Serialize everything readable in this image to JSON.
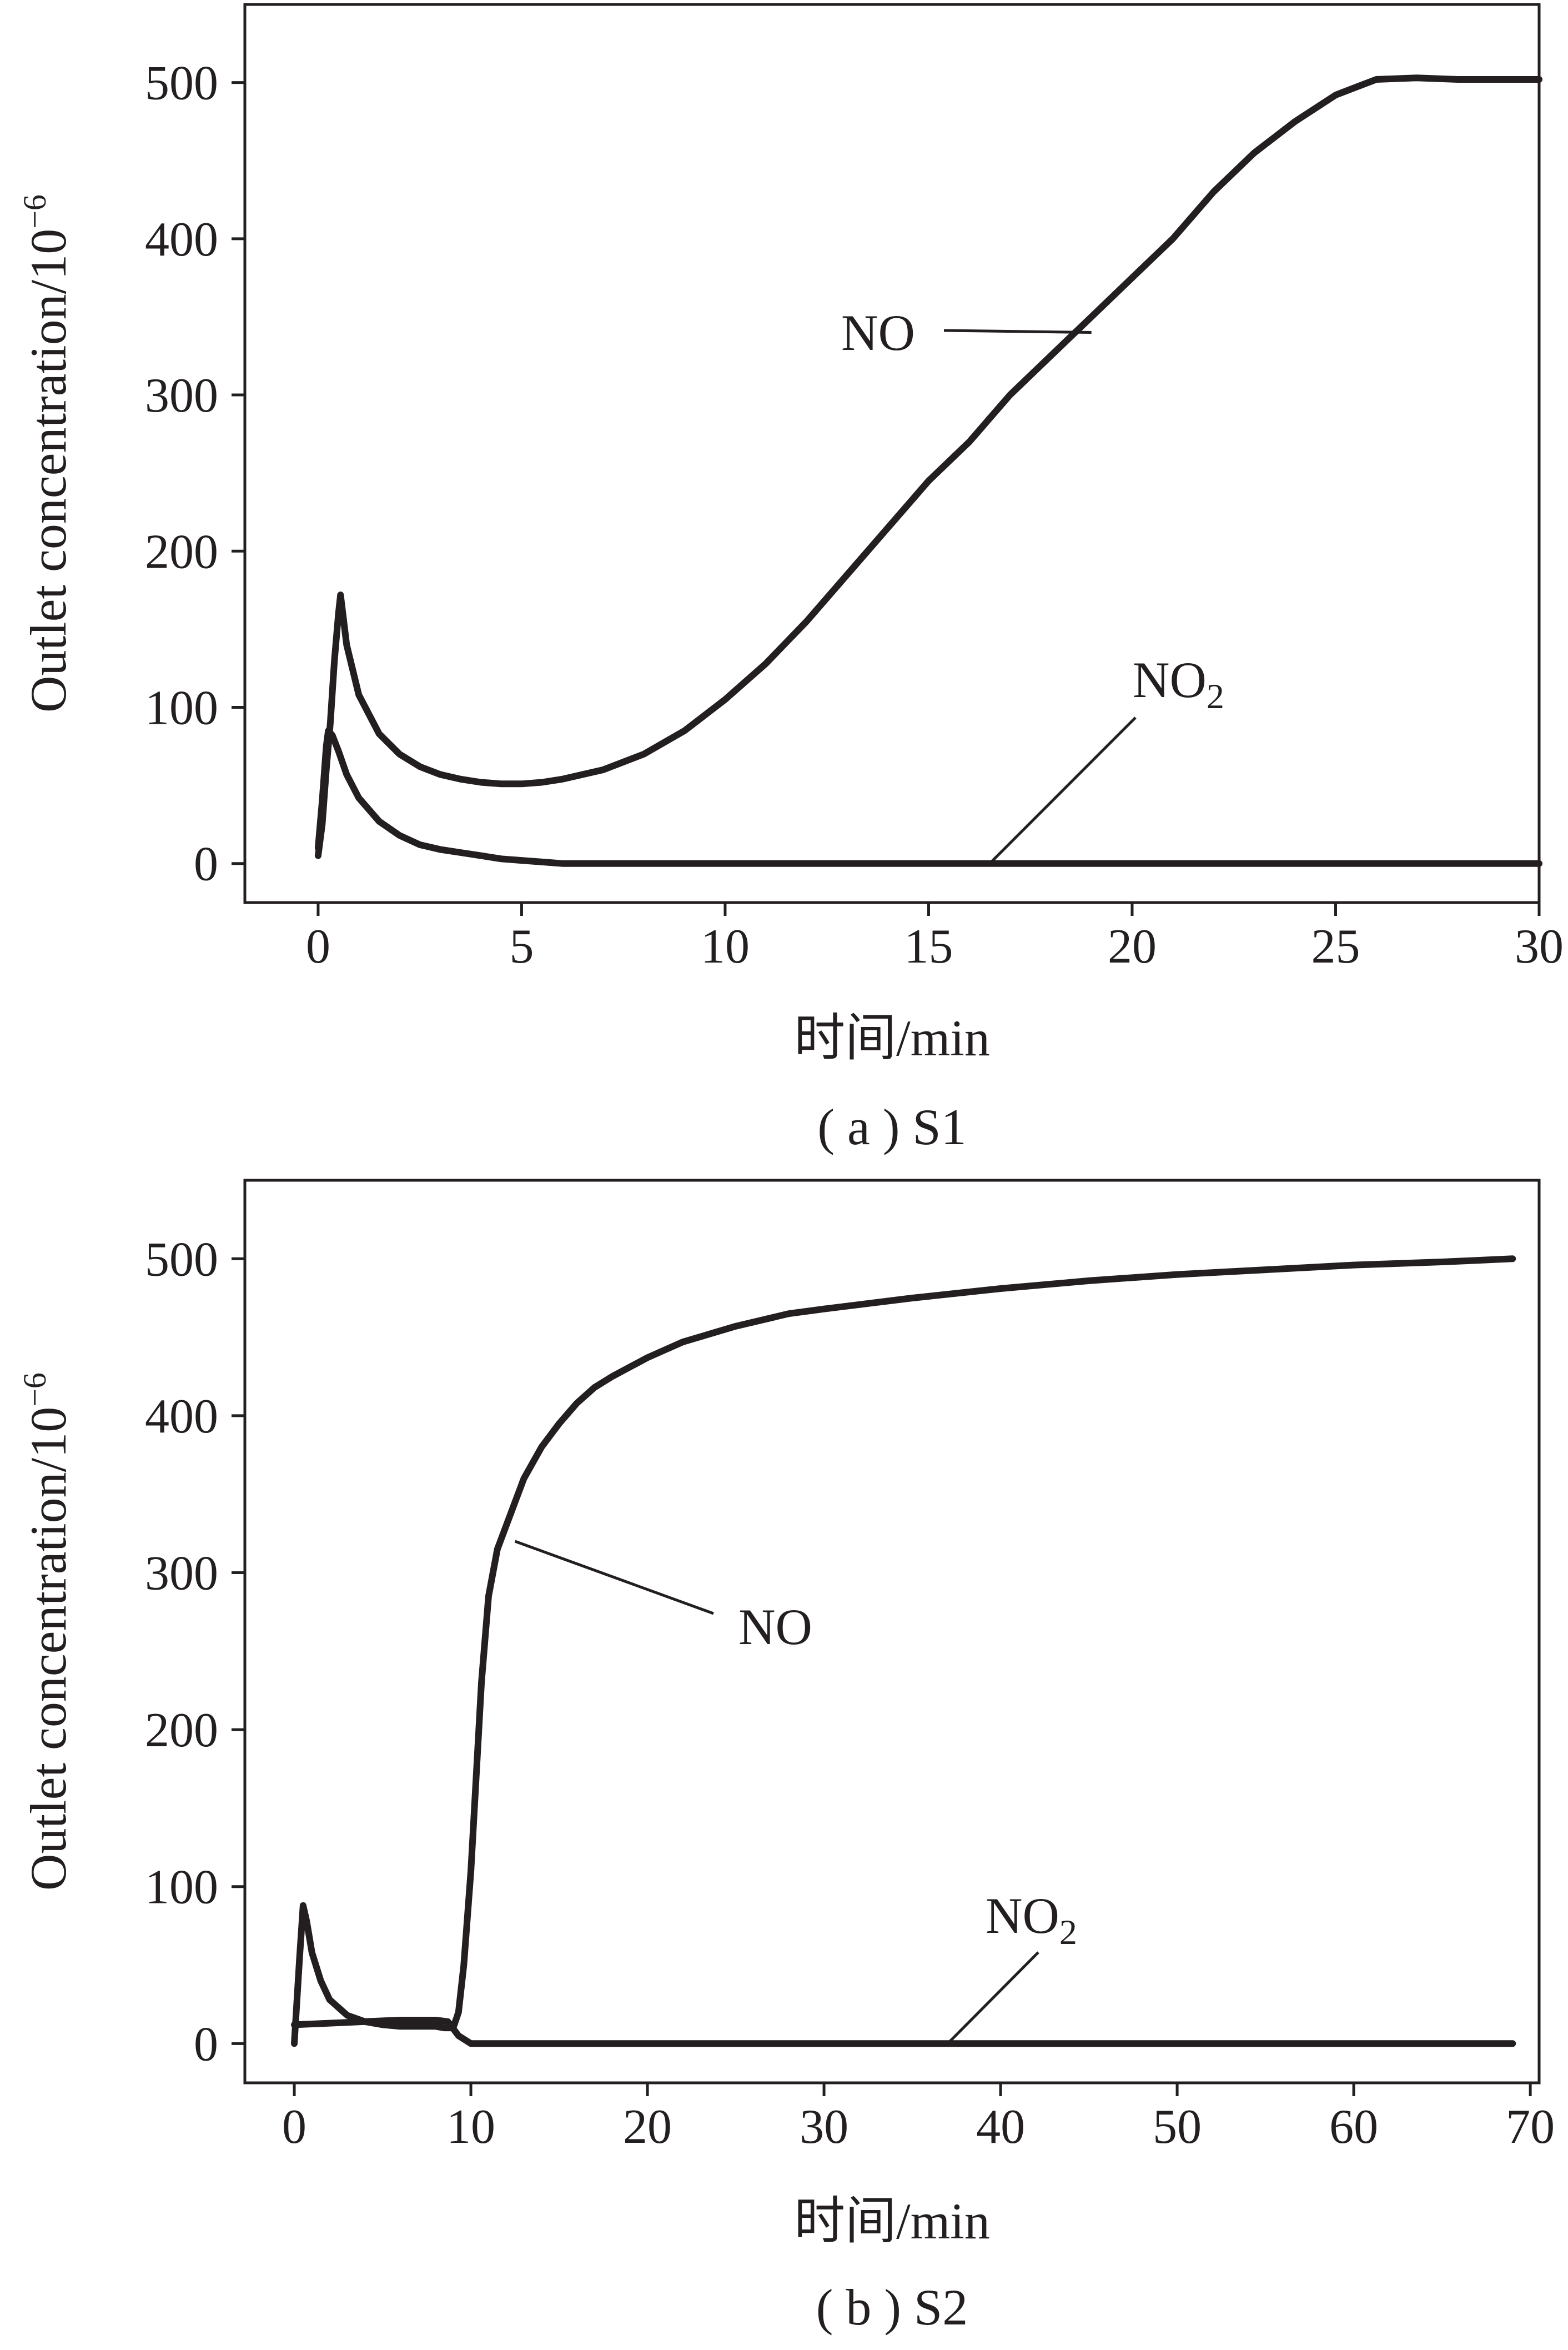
{
  "chart_data": [
    {
      "type": "line",
      "caption": "( a ) S1",
      "xlabel": "时间/min",
      "ylabel": "Outlet concentration/10",
      "ylabel_exponent": "−6",
      "xlim": [
        -1.8,
        30
      ],
      "ylim": [
        -25,
        550
      ],
      "xticks": [
        0,
        5,
        10,
        15,
        20,
        25,
        30
      ],
      "yticks": [
        0,
        100,
        200,
        300,
        400,
        500
      ],
      "grid": false,
      "series": [
        {
          "name": "NO",
          "x": [
            0.0,
            0.1,
            0.2,
            0.3,
            0.4,
            0.5,
            0.55,
            0.7,
            1.0,
            1.5,
            2.0,
            2.5,
            3.0,
            3.5,
            4.0,
            4.5,
            5.0,
            5.5,
            6.0,
            7.0,
            8.0,
            9.0,
            10.0,
            11.0,
            12.0,
            13.0,
            14.0,
            15.0,
            16.0,
            17.0,
            18.0,
            19.0,
            20.0,
            21.0,
            22.0,
            23.0,
            24.0,
            25.0,
            25.5,
            26.0,
            27.0,
            28.0,
            29.0,
            30.0
          ],
          "y": [
            5,
            25,
            60,
            90,
            130,
            160,
            172,
            140,
            108,
            83,
            70,
            62,
            57,
            54,
            52,
            51,
            51,
            52,
            54,
            60,
            70,
            85,
            105,
            128,
            155,
            185,
            215,
            245,
            270,
            300,
            325,
            350,
            375,
            400,
            430,
            455,
            475,
            492,
            497,
            502,
            503,
            502,
            502,
            502
          ]
        },
        {
          "name": "NO₂",
          "x": [
            0.0,
            0.1,
            0.2,
            0.25,
            0.35,
            0.5,
            0.7,
            1.0,
            1.5,
            2.0,
            2.5,
            3.0,
            3.5,
            4.0,
            4.5,
            5.0,
            5.5,
            6.0,
            8.0,
            10.0,
            15.0,
            20.0,
            25.0,
            30.0
          ],
          "y": [
            10,
            40,
            75,
            85,
            82,
            72,
            57,
            42,
            27,
            18,
            12,
            9,
            7,
            5,
            3,
            2,
            1,
            0,
            0,
            0,
            0,
            0,
            0,
            0
          ]
        }
      ],
      "annotations": [
        {
          "text": "NO",
          "target": {
            "x": 19,
            "y": 340
          }
        },
        {
          "text": "NO",
          "subscript": "2",
          "target": {
            "x": 16.5,
            "y": 0
          }
        }
      ]
    },
    {
      "type": "line",
      "caption": "( b ) S2",
      "xlabel": "时间/min",
      "ylabel": "Outlet concentration/10",
      "ylabel_exponent": "−6",
      "xlim": [
        -2.8,
        70.5
      ],
      "ylim": [
        -25,
        550
      ],
      "xticks": [
        0,
        10,
        20,
        30,
        40,
        50,
        60,
        70
      ],
      "yticks": [
        0,
        100,
        200,
        300,
        400,
        500
      ],
      "grid": false,
      "series": [
        {
          "name": "NO",
          "x": [
            0.0,
            0.3,
            0.5,
            0.7,
            1.0,
            1.5,
            2.0,
            3.0,
            4.0,
            5.0,
            6.0,
            7.0,
            8.0,
            8.5,
            9.0,
            9.3,
            9.6,
            10.0,
            10.3,
            10.6,
            11.0,
            11.5,
            12.0,
            12.5,
            13.0,
            14.0,
            15.0,
            16.0,
            17.0,
            18.0,
            20.0,
            22.0,
            25.0,
            28.0,
            30.0,
            35.0,
            40.0,
            45.0,
            50.0,
            55.0,
            60.0,
            65.0,
            69.0
          ],
          "y": [
            0,
            55,
            88,
            78,
            58,
            40,
            28,
            18,
            14,
            12,
            11,
            11,
            11,
            10,
            10,
            20,
            50,
            110,
            170,
            230,
            285,
            315,
            330,
            345,
            360,
            380,
            395,
            408,
            418,
            425,
            437,
            447,
            457,
            465,
            468,
            475,
            481,
            486,
            490,
            493,
            496,
            498,
            500
          ]
        },
        {
          "name": "NO₂",
          "x": [
            0.0,
            2.0,
            4.0,
            6.0,
            8.0,
            8.7,
            9.3,
            10.0,
            12.0,
            20.0,
            30.0,
            40.0,
            50.0,
            60.0,
            69.0
          ],
          "y": [
            12,
            13,
            14,
            15,
            15,
            14,
            5,
            0,
            0,
            0,
            0,
            0,
            0,
            0,
            0
          ]
        }
      ],
      "annotations": [
        {
          "text": "NO",
          "target": {
            "x": 12.5,
            "y": 320
          }
        },
        {
          "text": "NO",
          "subscript": "2",
          "target": {
            "x": 37,
            "y": 0
          }
        }
      ]
    }
  ]
}
